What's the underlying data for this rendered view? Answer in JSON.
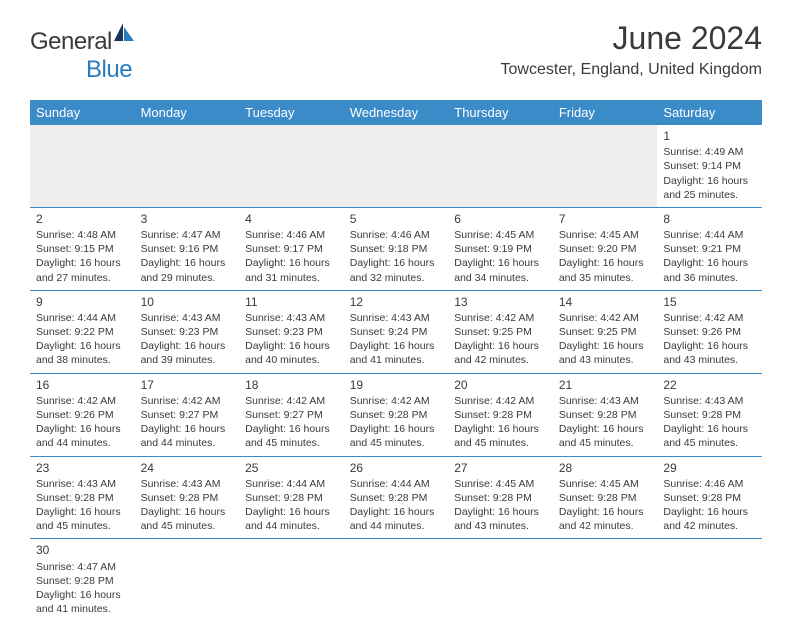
{
  "logo": {
    "text_general": "General",
    "text_blue": "Blue"
  },
  "title": "June 2024",
  "location": "Towcester, England, United Kingdom",
  "colors": {
    "header_bg": "#3b8bc9",
    "header_text": "#ffffff",
    "text": "#3a3a3a",
    "empty_bg": "#eeeeee",
    "border": "#3b8bc9",
    "logo_blue": "#2b7bbf"
  },
  "day_headers": [
    "Sunday",
    "Monday",
    "Tuesday",
    "Wednesday",
    "Thursday",
    "Friday",
    "Saturday"
  ],
  "weeks": [
    [
      null,
      null,
      null,
      null,
      null,
      null,
      {
        "day": "1",
        "sunrise": "Sunrise: 4:49 AM",
        "sunset": "Sunset: 9:14 PM",
        "daylight": "Daylight: 16 hours and 25 minutes."
      }
    ],
    [
      {
        "day": "2",
        "sunrise": "Sunrise: 4:48 AM",
        "sunset": "Sunset: 9:15 PM",
        "daylight": "Daylight: 16 hours and 27 minutes."
      },
      {
        "day": "3",
        "sunrise": "Sunrise: 4:47 AM",
        "sunset": "Sunset: 9:16 PM",
        "daylight": "Daylight: 16 hours and 29 minutes."
      },
      {
        "day": "4",
        "sunrise": "Sunrise: 4:46 AM",
        "sunset": "Sunset: 9:17 PM",
        "daylight": "Daylight: 16 hours and 31 minutes."
      },
      {
        "day": "5",
        "sunrise": "Sunrise: 4:46 AM",
        "sunset": "Sunset: 9:18 PM",
        "daylight": "Daylight: 16 hours and 32 minutes."
      },
      {
        "day": "6",
        "sunrise": "Sunrise: 4:45 AM",
        "sunset": "Sunset: 9:19 PM",
        "daylight": "Daylight: 16 hours and 34 minutes."
      },
      {
        "day": "7",
        "sunrise": "Sunrise: 4:45 AM",
        "sunset": "Sunset: 9:20 PM",
        "daylight": "Daylight: 16 hours and 35 minutes."
      },
      {
        "day": "8",
        "sunrise": "Sunrise: 4:44 AM",
        "sunset": "Sunset: 9:21 PM",
        "daylight": "Daylight: 16 hours and 36 minutes."
      }
    ],
    [
      {
        "day": "9",
        "sunrise": "Sunrise: 4:44 AM",
        "sunset": "Sunset: 9:22 PM",
        "daylight": "Daylight: 16 hours and 38 minutes."
      },
      {
        "day": "10",
        "sunrise": "Sunrise: 4:43 AM",
        "sunset": "Sunset: 9:23 PM",
        "daylight": "Daylight: 16 hours and 39 minutes."
      },
      {
        "day": "11",
        "sunrise": "Sunrise: 4:43 AM",
        "sunset": "Sunset: 9:23 PM",
        "daylight": "Daylight: 16 hours and 40 minutes."
      },
      {
        "day": "12",
        "sunrise": "Sunrise: 4:43 AM",
        "sunset": "Sunset: 9:24 PM",
        "daylight": "Daylight: 16 hours and 41 minutes."
      },
      {
        "day": "13",
        "sunrise": "Sunrise: 4:42 AM",
        "sunset": "Sunset: 9:25 PM",
        "daylight": "Daylight: 16 hours and 42 minutes."
      },
      {
        "day": "14",
        "sunrise": "Sunrise: 4:42 AM",
        "sunset": "Sunset: 9:25 PM",
        "daylight": "Daylight: 16 hours and 43 minutes."
      },
      {
        "day": "15",
        "sunrise": "Sunrise: 4:42 AM",
        "sunset": "Sunset: 9:26 PM",
        "daylight": "Daylight: 16 hours and 43 minutes."
      }
    ],
    [
      {
        "day": "16",
        "sunrise": "Sunrise: 4:42 AM",
        "sunset": "Sunset: 9:26 PM",
        "daylight": "Daylight: 16 hours and 44 minutes."
      },
      {
        "day": "17",
        "sunrise": "Sunrise: 4:42 AM",
        "sunset": "Sunset: 9:27 PM",
        "daylight": "Daylight: 16 hours and 44 minutes."
      },
      {
        "day": "18",
        "sunrise": "Sunrise: 4:42 AM",
        "sunset": "Sunset: 9:27 PM",
        "daylight": "Daylight: 16 hours and 45 minutes."
      },
      {
        "day": "19",
        "sunrise": "Sunrise: 4:42 AM",
        "sunset": "Sunset: 9:28 PM",
        "daylight": "Daylight: 16 hours and 45 minutes."
      },
      {
        "day": "20",
        "sunrise": "Sunrise: 4:42 AM",
        "sunset": "Sunset: 9:28 PM",
        "daylight": "Daylight: 16 hours and 45 minutes."
      },
      {
        "day": "21",
        "sunrise": "Sunrise: 4:43 AM",
        "sunset": "Sunset: 9:28 PM",
        "daylight": "Daylight: 16 hours and 45 minutes."
      },
      {
        "day": "22",
        "sunrise": "Sunrise: 4:43 AM",
        "sunset": "Sunset: 9:28 PM",
        "daylight": "Daylight: 16 hours and 45 minutes."
      }
    ],
    [
      {
        "day": "23",
        "sunrise": "Sunrise: 4:43 AM",
        "sunset": "Sunset: 9:28 PM",
        "daylight": "Daylight: 16 hours and 45 minutes."
      },
      {
        "day": "24",
        "sunrise": "Sunrise: 4:43 AM",
        "sunset": "Sunset: 9:28 PM",
        "daylight": "Daylight: 16 hours and 45 minutes."
      },
      {
        "day": "25",
        "sunrise": "Sunrise: 4:44 AM",
        "sunset": "Sunset: 9:28 PM",
        "daylight": "Daylight: 16 hours and 44 minutes."
      },
      {
        "day": "26",
        "sunrise": "Sunrise: 4:44 AM",
        "sunset": "Sunset: 9:28 PM",
        "daylight": "Daylight: 16 hours and 44 minutes."
      },
      {
        "day": "27",
        "sunrise": "Sunrise: 4:45 AM",
        "sunset": "Sunset: 9:28 PM",
        "daylight": "Daylight: 16 hours and 43 minutes."
      },
      {
        "day": "28",
        "sunrise": "Sunrise: 4:45 AM",
        "sunset": "Sunset: 9:28 PM",
        "daylight": "Daylight: 16 hours and 42 minutes."
      },
      {
        "day": "29",
        "sunrise": "Sunrise: 4:46 AM",
        "sunset": "Sunset: 9:28 PM",
        "daylight": "Daylight: 16 hours and 42 minutes."
      }
    ],
    [
      {
        "day": "30",
        "sunrise": "Sunrise: 4:47 AM",
        "sunset": "Sunset: 9:28 PM",
        "daylight": "Daylight: 16 hours and 41 minutes."
      },
      null,
      null,
      null,
      null,
      null,
      null
    ]
  ]
}
